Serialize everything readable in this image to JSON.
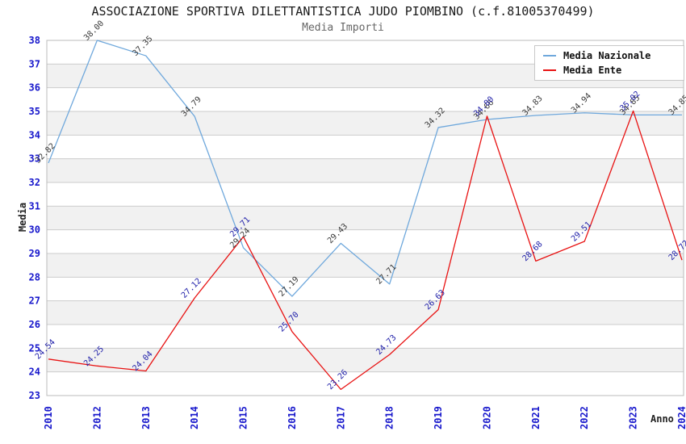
{
  "header": {
    "title": "ASSOCIAZIONE SPORTIVA DILETTANTISTICA JUDO PIOMBINO (c.f.81005370499)",
    "subtitle": "Media Importi"
  },
  "chart_data": {
    "type": "line",
    "title": "ASSOCIAZIONE SPORTIVA DILETTANTISTICA JUDO PIOMBINO (c.f.81005370499)",
    "subtitle": "Media Importi",
    "xlabel": "Anno",
    "ylabel": "Media",
    "categories": [
      "2010",
      "2012",
      "2013",
      "2014",
      "2015",
      "2016",
      "2017",
      "2018",
      "2019",
      "2020",
      "2021",
      "2022",
      "2023",
      "2024"
    ],
    "series": [
      {
        "name": "Media Nazionale",
        "color": "#6FA8DC",
        "label_color": "#3a3a3a",
        "values": [
          32.82,
          38.0,
          37.35,
          34.79,
          29.24,
          27.19,
          29.43,
          27.71,
          34.32,
          34.66,
          34.83,
          34.94,
          34.85,
          34.85
        ]
      },
      {
        "name": "Media Ente",
        "color": "#E81212",
        "label_color": "#2222AA",
        "values": [
          24.54,
          24.25,
          24.04,
          27.12,
          29.71,
          25.7,
          23.26,
          24.73,
          26.63,
          34.8,
          28.68,
          29.51,
          35.02,
          28.72
        ]
      }
    ],
    "ylim": [
      23,
      38
    ],
    "ytick_step": 1,
    "grid": true,
    "legend_position": "top-right",
    "band_color": "#f1f1f1",
    "gridline_color": "#cccccc",
    "axis_tick_color": "#1818CC",
    "data_label_format": "0.00"
  }
}
